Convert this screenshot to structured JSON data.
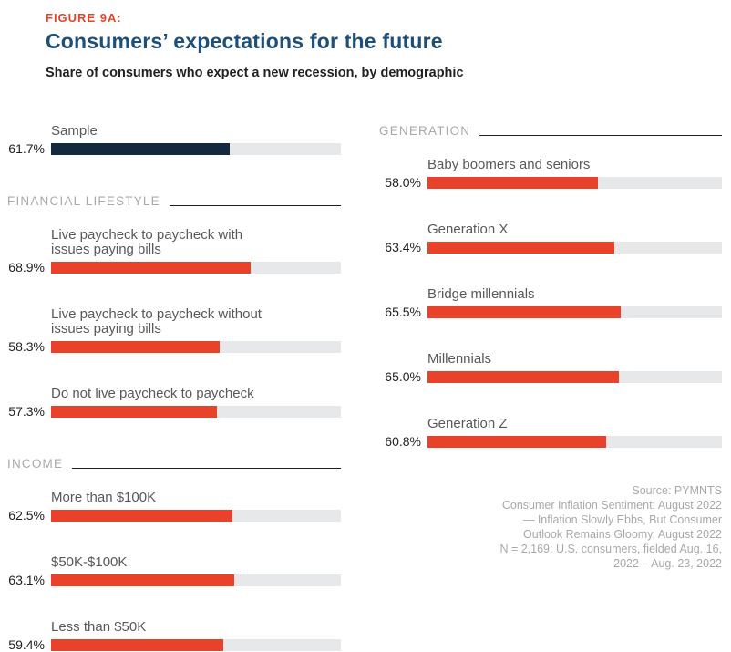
{
  "figure": {
    "eyebrow": "FIGURE 9A:",
    "title": "Consumers’ expectations for the future",
    "subtitle": "Share of consumers who expect a new recession, by demographic"
  },
  "colors": {
    "accent_red": "#e8432a",
    "sample_navy": "#13293f",
    "title_blue": "#1d4f79",
    "label_gray": "#58595b",
    "section_gray": "#a7a9ac",
    "value_dark": "#231f20",
    "track_gray": "#e7e8e9"
  },
  "chart_data": {
    "type": "bar",
    "orientation": "horizontal",
    "title": "Consumers’ expectations for the future",
    "subtitle": "Share of consumers who expect a new recession, by demographic",
    "value_unit": "%",
    "axis_range": [
      0,
      100
    ],
    "grid": false,
    "columns": [
      {
        "id": "left",
        "sections": [
          {
            "header": "",
            "rows": [
              {
                "label": "Sample",
                "value": 61.7,
                "display": "61.7%",
                "color": "#13293f"
              }
            ]
          },
          {
            "header": "FINANCIAL LIFESTYLE",
            "rows": [
              {
                "label": "Live paycheck to paycheck with\nissues paying bills",
                "value": 68.9,
                "display": "68.9%"
              },
              {
                "label": "Live paycheck to paycheck without\nissues paying bills",
                "value": 58.3,
                "display": "58.3%"
              },
              {
                "label": "Do not live paycheck to paycheck",
                "value": 57.3,
                "display": "57.3%"
              }
            ]
          },
          {
            "header": "INCOME",
            "rows": [
              {
                "label": "More than $100K",
                "value": 62.5,
                "display": "62.5%"
              },
              {
                "label": "$50K-$100K",
                "value": 63.1,
                "display": "63.1%"
              },
              {
                "label": "Less than $50K",
                "value": 59.4,
                "display": "59.4%"
              }
            ]
          }
        ]
      },
      {
        "id": "right",
        "sections": [
          {
            "header": "GENERATION",
            "rows": [
              {
                "label": "Baby boomers and seniors",
                "value": 58.0,
                "display": "58.0%"
              },
              {
                "label": "Generation X",
                "value": 63.4,
                "display": "63.4%"
              },
              {
                "label": "Bridge millennials",
                "value": 65.5,
                "display": "65.5%"
              },
              {
                "label": "Millennials",
                "value": 65.0,
                "display": "65.0%"
              },
              {
                "label": "Generation Z",
                "value": 60.8,
                "display": "60.8%"
              }
            ]
          }
        ]
      }
    ]
  },
  "source": {
    "lines": [
      "Source: PYMNTS",
      "Consumer Inflation Sentiment: August 2022",
      "— Inflation Slowly Ebbs, But Consumer",
      "Outlook Remains Gloomy, August 2022",
      "N = 2,169: U.S. consumers, fielded Aug. 16,",
      "2022 – Aug. 23, 2022"
    ]
  }
}
